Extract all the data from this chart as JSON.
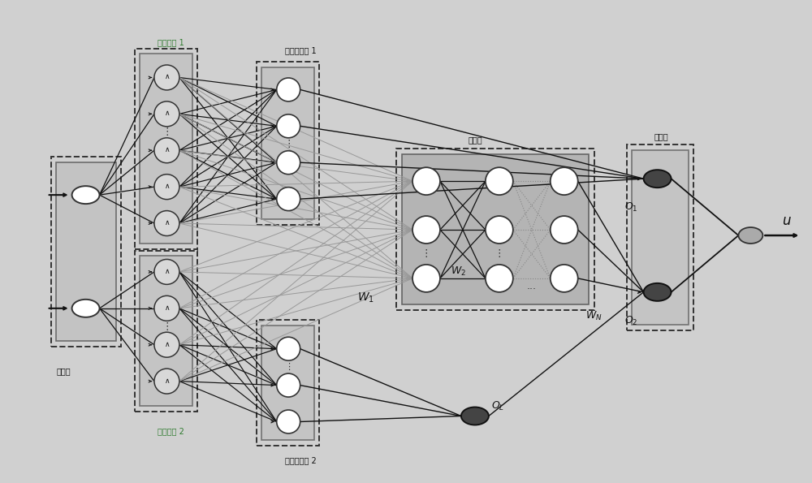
{
  "figure_bg": "#d0d0d0",
  "node_fill_dark": "#555555",
  "node_fill_white": "#ffffff",
  "node_fill_gray": "#c8c8c8",
  "node_edge": "#222222",
  "line_dark": "#111111",
  "line_gray": "#999999",
  "label_green": "#2d7a2d",
  "label_black": "#111111",
  "labels": {
    "input_layer": "输入层",
    "fuzzify1": "模糊化层 1",
    "fuzzify2": "模糊化层 2",
    "fuzzy_rule1": "模糊规则层 1",
    "fuzzy_rule2": "模糊规则层 2",
    "hidden": "隐启层",
    "fusion": "融合层",
    "W1": "$W_1$",
    "W2": "$W_2$",
    "WN": "$W_N$",
    "O1": "$O_1$",
    "O2": "$O_2$",
    "OL": "$O_L$",
    "u": "$u$"
  }
}
